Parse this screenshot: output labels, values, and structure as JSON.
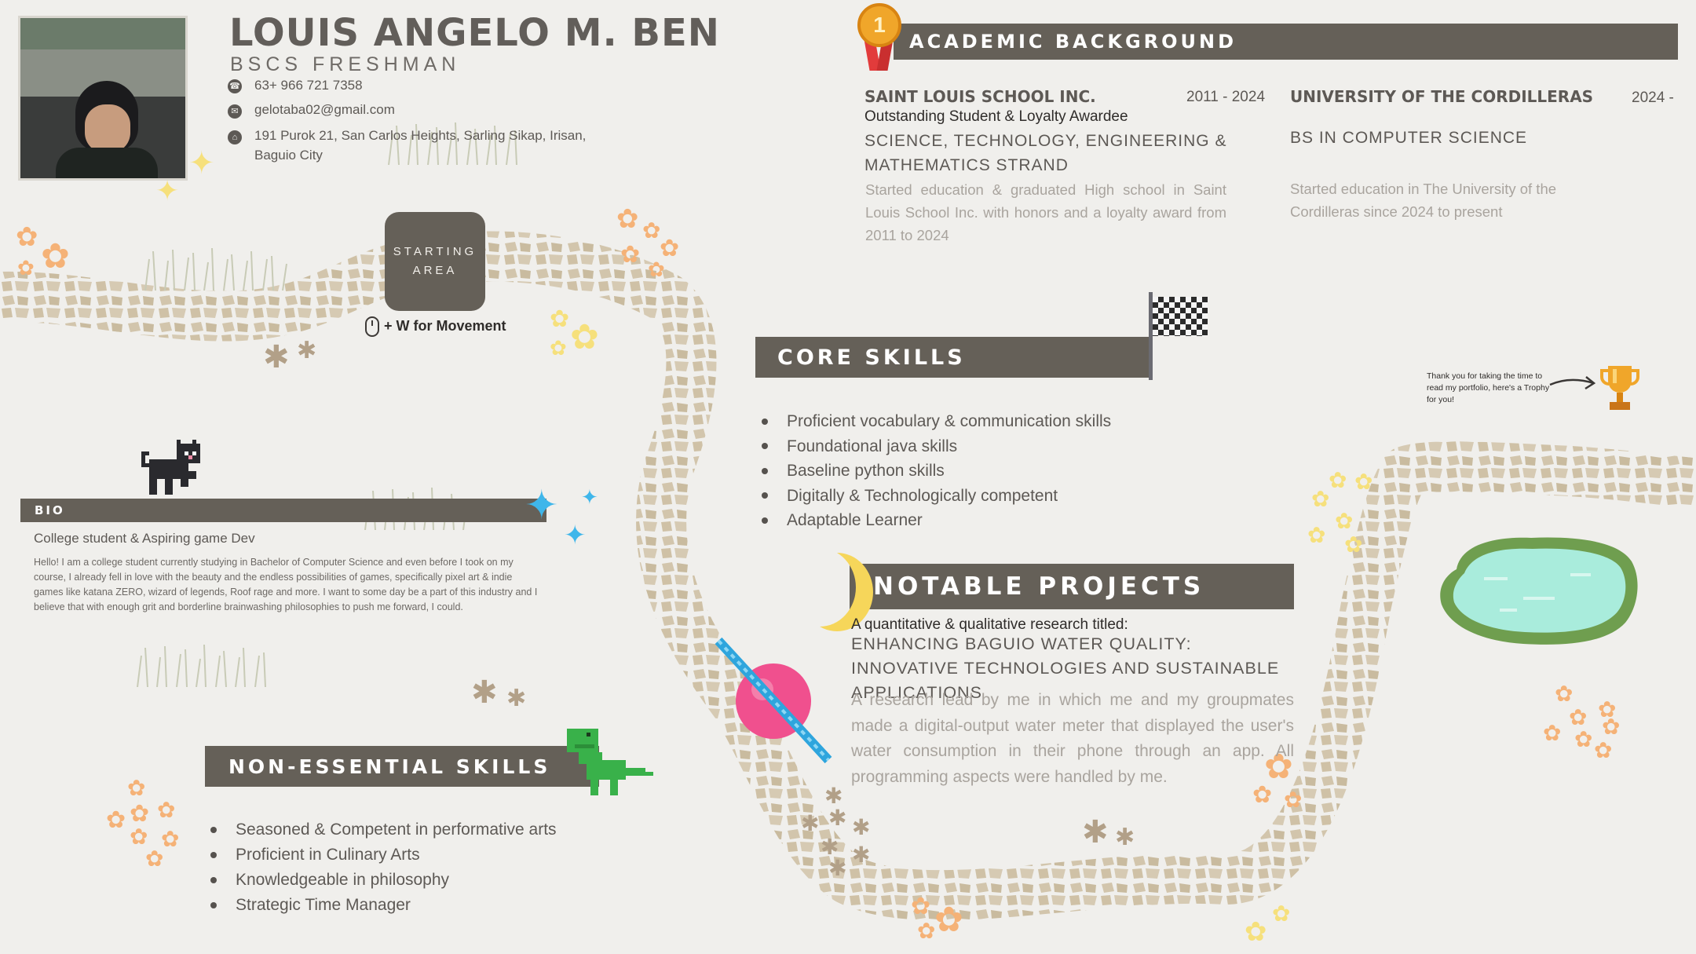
{
  "profile": {
    "name": "LOUIS ANGELO M. BEN",
    "role": "BSCS FRESHMAN",
    "phone": "63+ 966 721 7358",
    "email": "gelotaba02@gmail.com",
    "address_line1": "191 Purok 21, San Carlos Heights, Sarling Sikap, Irisan,",
    "address_line2": "Baguio City"
  },
  "starting_area": {
    "line1": "STARTING",
    "line2": "AREA",
    "hint": "+ W for Movement"
  },
  "bio": {
    "heading": "BIO",
    "subtitle": "College student & Aspiring game Dev",
    "text": "Hello! I am a college student currently studying in Bachelor of Computer Science and even before I took on my course, I already fell in love with the beauty and the endless possibilities of games, specifically pixel art & indie games like katana ZERO, wizard of legends, Roof rage and more. I want to some day be a part of this industry and I believe that with enough grit and borderline brainwashing philosophies to push me forward, I could."
  },
  "non_essential": {
    "heading": "NON-ESSENTIAL SKILLS",
    "items": [
      "Seasoned & Competent in performative arts",
      "Proficient in Culinary Arts",
      "Knowledgeable in philosophy",
      "Strategic Time Manager"
    ]
  },
  "academic": {
    "heading": "ACADEMIC BACKGROUND",
    "school1": {
      "name": "SAINT LOUIS SCHOOL INC.",
      "years": "2011 - 2024",
      "award": "Outstanding Student & Loyalty Awardee",
      "strand": "SCIENCE, TECHNOLOGY, ENGINEERING & MATHEMATICS STRAND",
      "desc": "Started education & graduated High school in Saint Louis School Inc. with honors and a loyalty award from 2011 to 2024"
    },
    "school2": {
      "name": "UNIVERSITY OF THE CORDILLERAS",
      "years": "2024 -",
      "program": "BS IN COMPUTER SCIENCE",
      "desc": "Started education in The University of the Cordilleras since 2024 to present"
    }
  },
  "core": {
    "heading": "CORE SKILLS",
    "items": [
      "Proficient vocabulary & communication skills",
      "Foundational java skills",
      "Baseline python skills",
      "Digitally & Technologically competent",
      "Adaptable Learner"
    ]
  },
  "projects": {
    "heading": "NOTABLE PROJECTS",
    "intro": "A quantitative & qualitative research titled:",
    "title": "ENHANCING BAGUIO WATER QUALITY: INNOVATIVE TECHNOLOGIES AND SUSTAINABLE APPLICATIONS",
    "desc": "A research lead by me in which me and my groupmates made a digital-output water meter that displayed the user's water consumption in their phone through an app. All programming aspects were handled by me."
  },
  "trophy": {
    "note": "Thank you for taking the time to read my portfolio, here's a Trophy for you!"
  },
  "medal": {
    "number": "1"
  },
  "colors": {
    "background": "#f0efec",
    "bar": "#656058",
    "text": "#5d5955",
    "muted": "#a9a49e",
    "path_stone": "#d2c5ac",
    "flower_orange": "#f5b277",
    "flower_brown": "#b2a088",
    "pond": "#a9ecdc",
    "pond_border": "#6f9e4f"
  },
  "icons": [
    "phone-icon",
    "email-icon",
    "home-icon",
    "mouse-icon",
    "medal-icon",
    "flag-icon",
    "trophy-icon",
    "cat-sprite",
    "dino-sprite",
    "moon-sprite",
    "planet-sprite",
    "sparkle-icon",
    "pond-sprite",
    "arrow-icon"
  ]
}
